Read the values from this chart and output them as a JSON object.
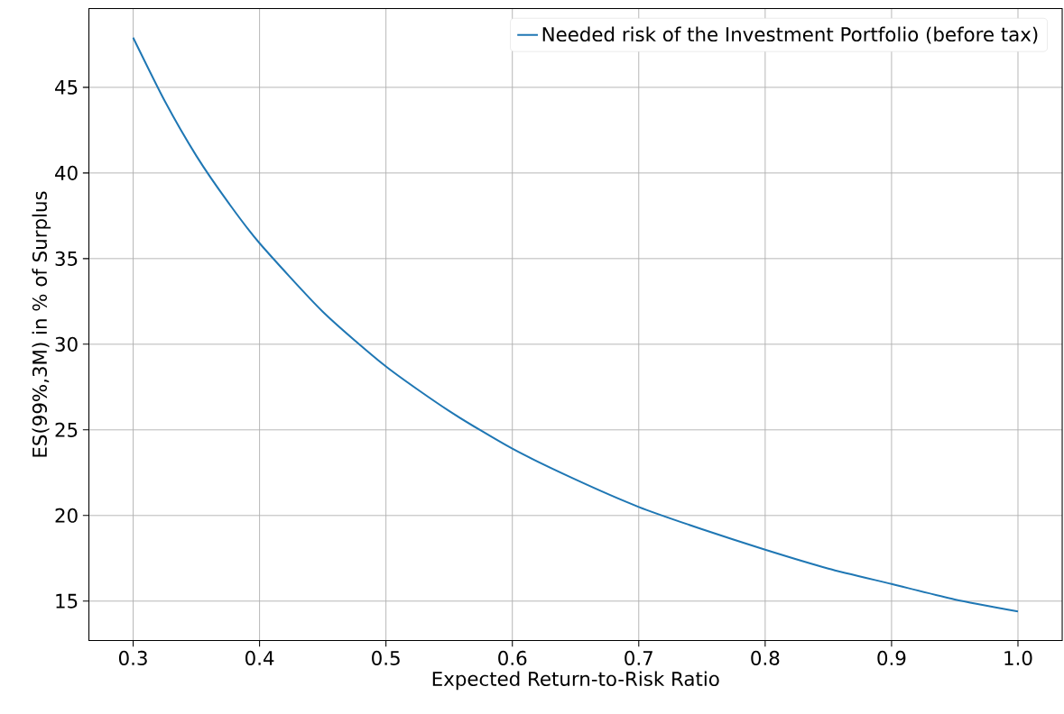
{
  "chart_data": {
    "type": "line",
    "xlabel": "Expected Return-to-Risk Ratio",
    "ylabel": "ES(99%,3M) in % of Surplus",
    "series": [
      {
        "name": "Needed risk of the Investment Portfolio (before tax)",
        "color": "#1f77b4",
        "x": [
          0.3,
          0.325,
          0.35,
          0.375,
          0.4,
          0.45,
          0.5,
          0.55,
          0.6,
          0.65,
          0.7,
          0.75,
          0.8,
          0.85,
          0.9,
          0.95,
          1.0
        ],
        "values": [
          47.9,
          44.2,
          41.0,
          38.3,
          35.9,
          31.9,
          28.7,
          26.1,
          23.9,
          22.1,
          20.5,
          19.2,
          18.0,
          16.9,
          16.0,
          15.1,
          14.4
        ]
      }
    ],
    "xlim": [
      0.265,
      1.035
    ],
    "ylim": [
      12.7,
      49.6
    ],
    "xticks": [
      0.3,
      0.4,
      0.5,
      0.6,
      0.7,
      0.8,
      0.9,
      {
        "value": 1.0,
        "label": "1.0"
      }
    ],
    "yticks": [
      15,
      20,
      25,
      30,
      35,
      40,
      45
    ],
    "grid": true,
    "legend": "top right",
    "line_style": "solid",
    "marker": "none"
  }
}
